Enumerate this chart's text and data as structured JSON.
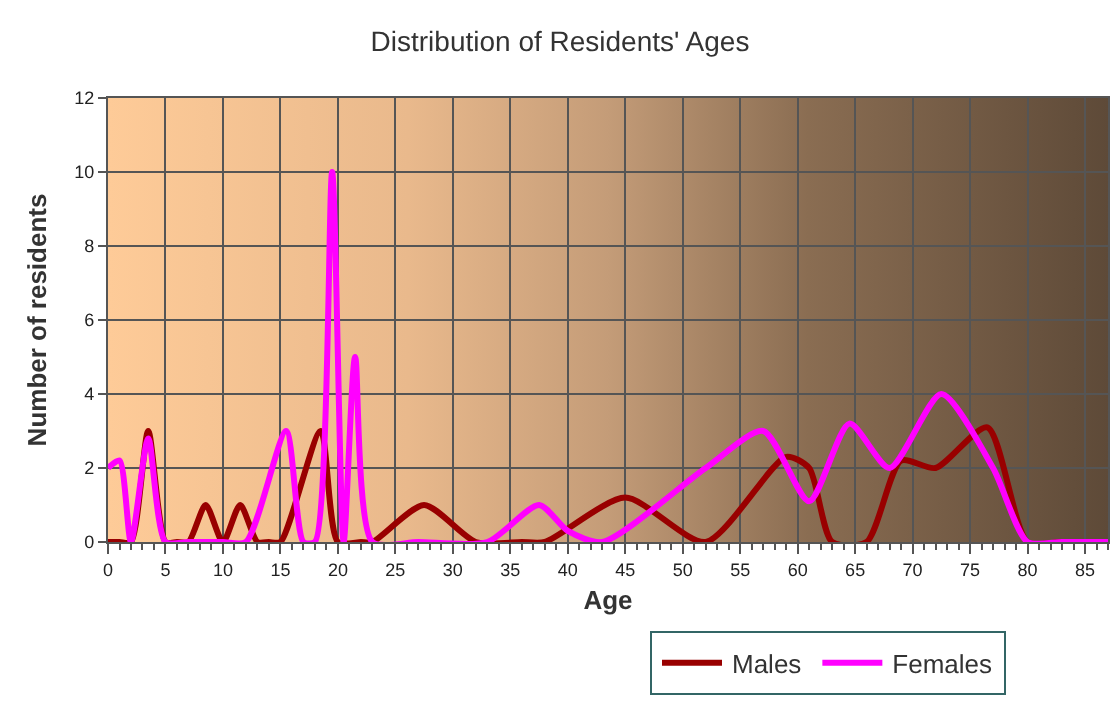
{
  "chart_data": {
    "type": "line",
    "title": "Distribution of Residents' Ages",
    "xlabel": "Age",
    "ylabel": "Number of residents",
    "xlim": [
      0,
      87
    ],
    "xticks": [
      0,
      5,
      10,
      15,
      20,
      25,
      30,
      35,
      40,
      45,
      50,
      55,
      60,
      65,
      70,
      75,
      80,
      85
    ],
    "ylim": [
      0,
      12
    ],
    "yticks": [
      0,
      2,
      4,
      6,
      8,
      10,
      12
    ],
    "grid": true,
    "legend": "bottom",
    "marker": "none",
    "line_style": "solid",
    "series": [
      {
        "name": "Males",
        "color": "#990000",
        "x": [
          0,
          1,
          2,
          3.5,
          5,
          6,
          7,
          8.5,
          10,
          11.5,
          13,
          14,
          15,
          18.5,
          20,
          22,
          23,
          27.5,
          32,
          36,
          38,
          45,
          52,
          59,
          61,
          63,
          66,
          69,
          72,
          76.5,
          80,
          83,
          87
        ],
        "values": [
          0,
          0,
          0,
          3,
          0,
          0,
          0,
          1,
          0,
          1,
          0,
          0,
          0,
          3,
          0,
          0,
          0,
          1,
          0,
          0,
          0,
          1.2,
          0,
          2.3,
          2,
          0,
          0,
          2.2,
          2,
          3.1,
          0,
          0,
          0
        ]
      },
      {
        "name": "Females",
        "color": "#ff00ff",
        "x": [
          0,
          1,
          2,
          3.5,
          5,
          7,
          10,
          12,
          15.5,
          17,
          18,
          19.5,
          20.5,
          21.5,
          23,
          27,
          33,
          37.5,
          40,
          43,
          52,
          57,
          61,
          64.5,
          68,
          72.5,
          77,
          80,
          83,
          87
        ],
        "values": [
          2,
          2.2,
          0,
          2.8,
          0,
          0,
          0,
          0,
          3,
          0,
          0,
          10,
          0,
          5,
          0,
          0,
          0,
          1,
          0.3,
          0,
          2,
          3,
          1.1,
          3.2,
          2,
          4,
          2,
          0,
          0,
          0
        ]
      }
    ]
  }
}
